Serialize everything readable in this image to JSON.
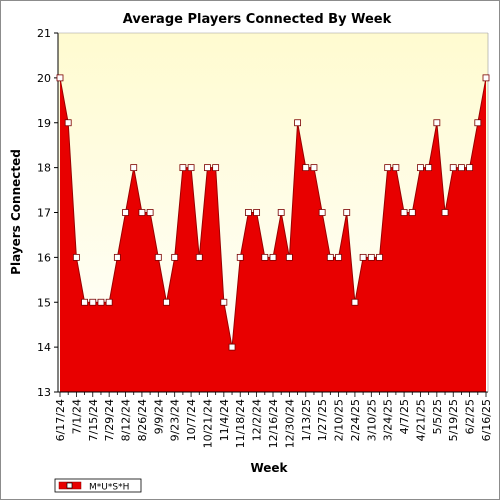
{
  "chart_data": {
    "type": "area",
    "title": "Average Players Connected By Week",
    "xlabel": "Week",
    "ylabel": "Players Connected",
    "ylim": [
      13,
      21
    ],
    "yticks": [
      13,
      14,
      15,
      16,
      17,
      18,
      19,
      20,
      21
    ],
    "x": [
      "6/17/24",
      "6/24/24",
      "7/1/24",
      "7/8/24",
      "7/15/24",
      "7/22/24",
      "7/29/24",
      "8/5/24",
      "8/12/24",
      "8/19/24",
      "8/26/24",
      "9/2/24",
      "9/9/24",
      "9/16/24",
      "9/23/24",
      "9/30/24",
      "10/7/24",
      "10/14/24",
      "10/21/24",
      "10/28/24",
      "11/4/24",
      "11/11/24",
      "11/18/24",
      "11/25/24",
      "12/2/24",
      "12/9/24",
      "12/16/24",
      "12/23/24",
      "12/30/24",
      "1/6/25",
      "1/13/25",
      "1/20/25",
      "1/27/25",
      "2/3/25",
      "2/10/25",
      "2/17/25",
      "2/24/25",
      "3/3/25",
      "3/10/25",
      "3/17/25",
      "3/24/25",
      "3/31/25",
      "4/7/25",
      "4/14/25",
      "4/21/25",
      "4/28/25",
      "5/5/25",
      "5/12/25",
      "5/19/25",
      "5/26/25",
      "6/2/25",
      "6/9/25",
      "6/16/25"
    ],
    "x_tick_labels": [
      "6/17/24",
      "7/1/24",
      "7/15/24",
      "7/29/24",
      "8/12/24",
      "8/26/24",
      "9/9/24",
      "9/23/24",
      "10/7/24",
      "10/21/24",
      "11/4/24",
      "11/18/24",
      "12/2/24",
      "12/16/24",
      "12/30/24",
      "1/13/25",
      "1/27/25",
      "2/10/25",
      "2/24/25",
      "3/10/25",
      "3/24/25",
      "4/7/25",
      "4/21/25",
      "5/5/25",
      "5/19/25",
      "6/2/25",
      "6/16/25"
    ],
    "series": [
      {
        "name": "M*U*S*H",
        "color": "#e80000",
        "values": [
          20,
          19,
          16,
          15,
          15,
          15,
          15,
          16,
          17,
          18,
          17,
          17,
          16,
          15,
          16,
          18,
          18,
          16,
          18,
          18,
          15,
          14,
          16,
          17,
          17,
          16,
          16,
          17,
          16,
          19,
          18,
          18,
          17,
          16,
          16,
          17,
          15,
          16,
          16,
          16,
          18,
          18,
          17,
          17,
          18,
          18,
          19,
          17,
          18,
          18,
          18,
          19,
          20
        ]
      }
    ],
    "grid": false,
    "legend_position": "bottom-left",
    "plot_background": "#ffffe0"
  }
}
